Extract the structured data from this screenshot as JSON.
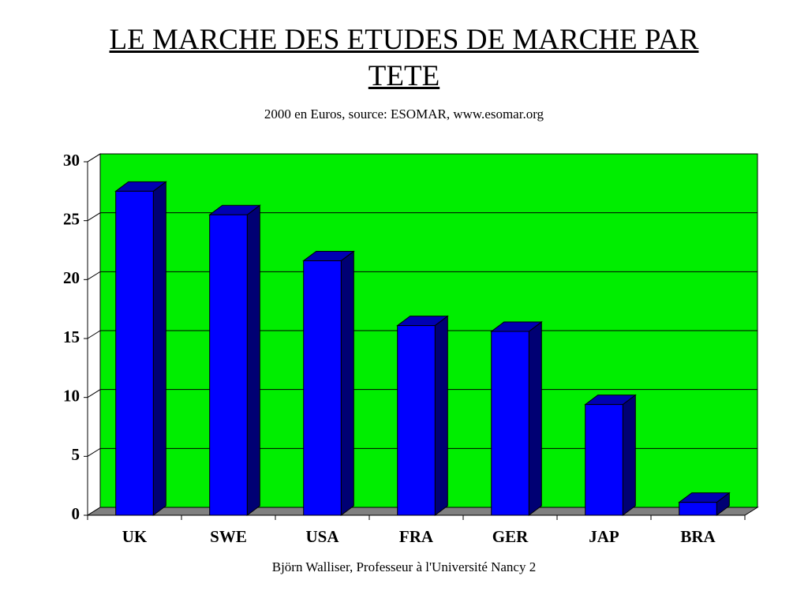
{
  "chart_data": {
    "type": "bar3d",
    "title": "LE MARCHE DES ETUDES DE MARCHE PAR TETE",
    "subtitle": "2000 en Euros, source: ESOMAR, www.esomar.org",
    "footer": "Björn Walliser, Professeur à l'Université Nancy 2",
    "categories": [
      "UK",
      "SWE",
      "USA",
      "FRA",
      "GER",
      "JAP",
      "BRA"
    ],
    "values": [
      27.5,
      25.5,
      21.6,
      16.1,
      15.6,
      9.4,
      1.1
    ],
    "color": "#0000ff",
    "background_color": "#00ee00",
    "ylim": [
      0,
      30
    ],
    "yticks": [
      0,
      5,
      10,
      15,
      20,
      25,
      30
    ],
    "grid": true
  }
}
